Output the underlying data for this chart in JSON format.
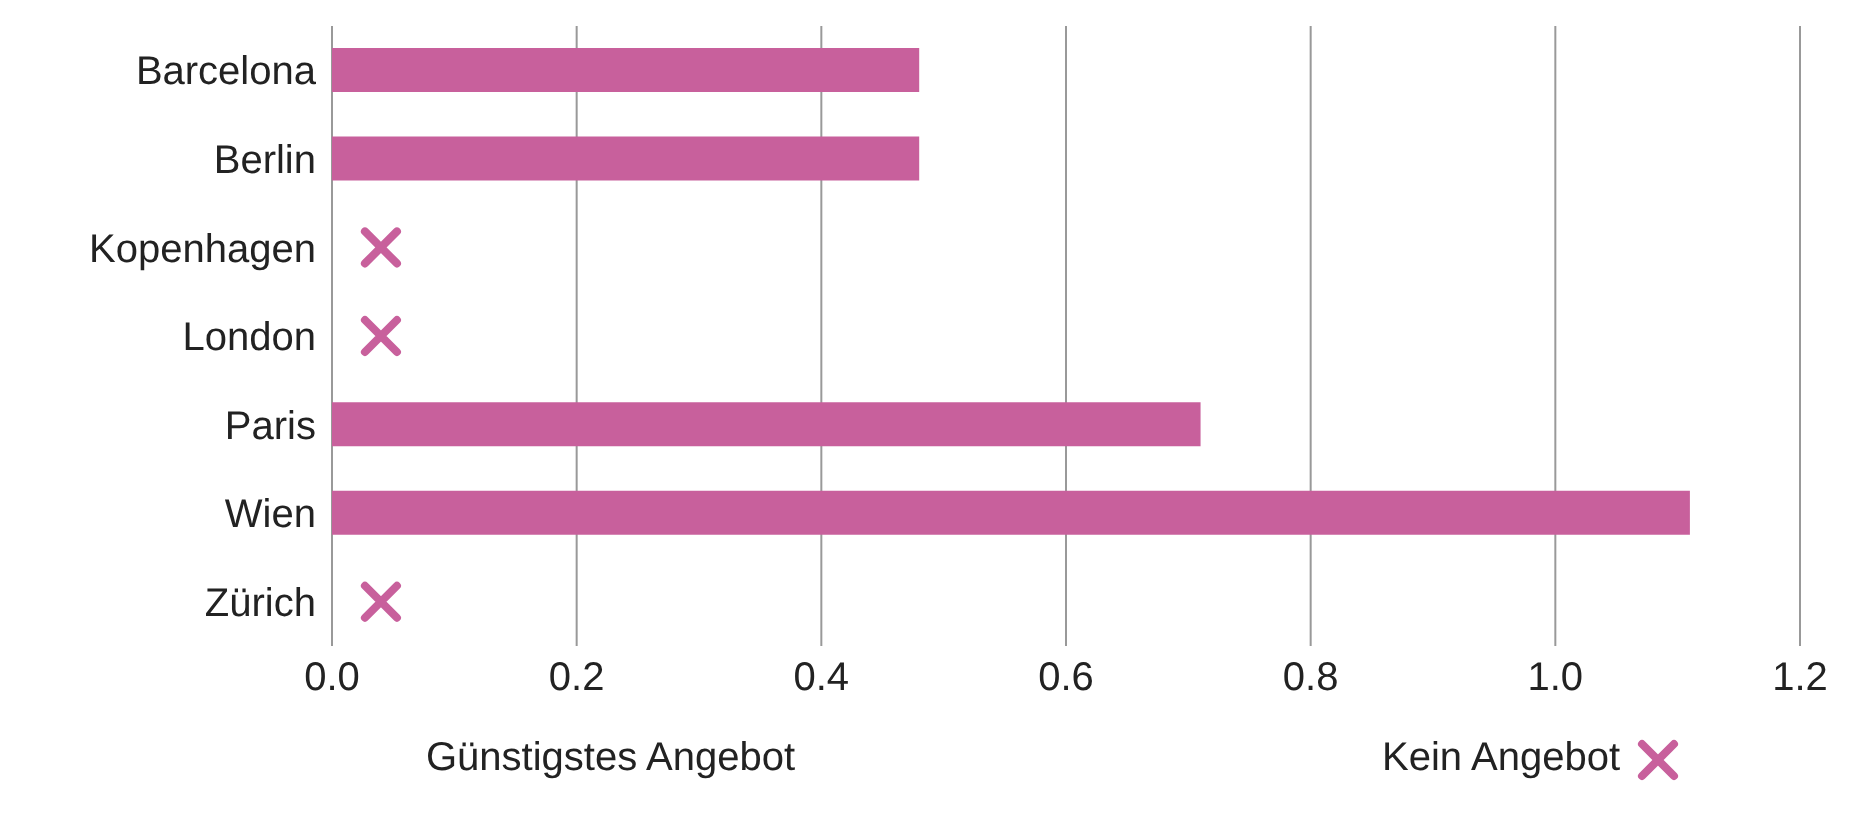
{
  "chart_data": {
    "type": "bar",
    "orientation": "horizontal",
    "xlabel": "Günstigstes Angebot",
    "categories": [
      "Barcelona",
      "Berlin",
      "Kopenhagen",
      "London",
      "Paris",
      "Wien",
      "Zürich"
    ],
    "series": [
      {
        "color": "#c8609c",
        "values": [
          0.48,
          0.48,
          null,
          null,
          0.71,
          1.11,
          null
        ]
      },
      {
        "type": "scatter",
        "name": "Kein Angebot",
        "color": "#c8609c",
        "marker": "cross",
        "values": [
          null,
          null,
          0.04,
          0.04,
          null,
          null,
          0.04
        ]
      }
    ],
    "xlim": [
      0,
      1.2
    ],
    "xticks": [
      {
        "value": 0,
        "label": "0.0"
      },
      {
        "value": 0.2,
        "label": "0.2"
      },
      {
        "value": 0.4,
        "label": "0.4"
      },
      {
        "value": 0.6,
        "label": "0.6"
      },
      {
        "value": 0.8,
        "label": "0.8"
      },
      {
        "value": 1,
        "label": "1.0"
      },
      {
        "value": 1.2,
        "label": "1.2"
      }
    ],
    "grid": "x",
    "legend": "bottom right"
  }
}
